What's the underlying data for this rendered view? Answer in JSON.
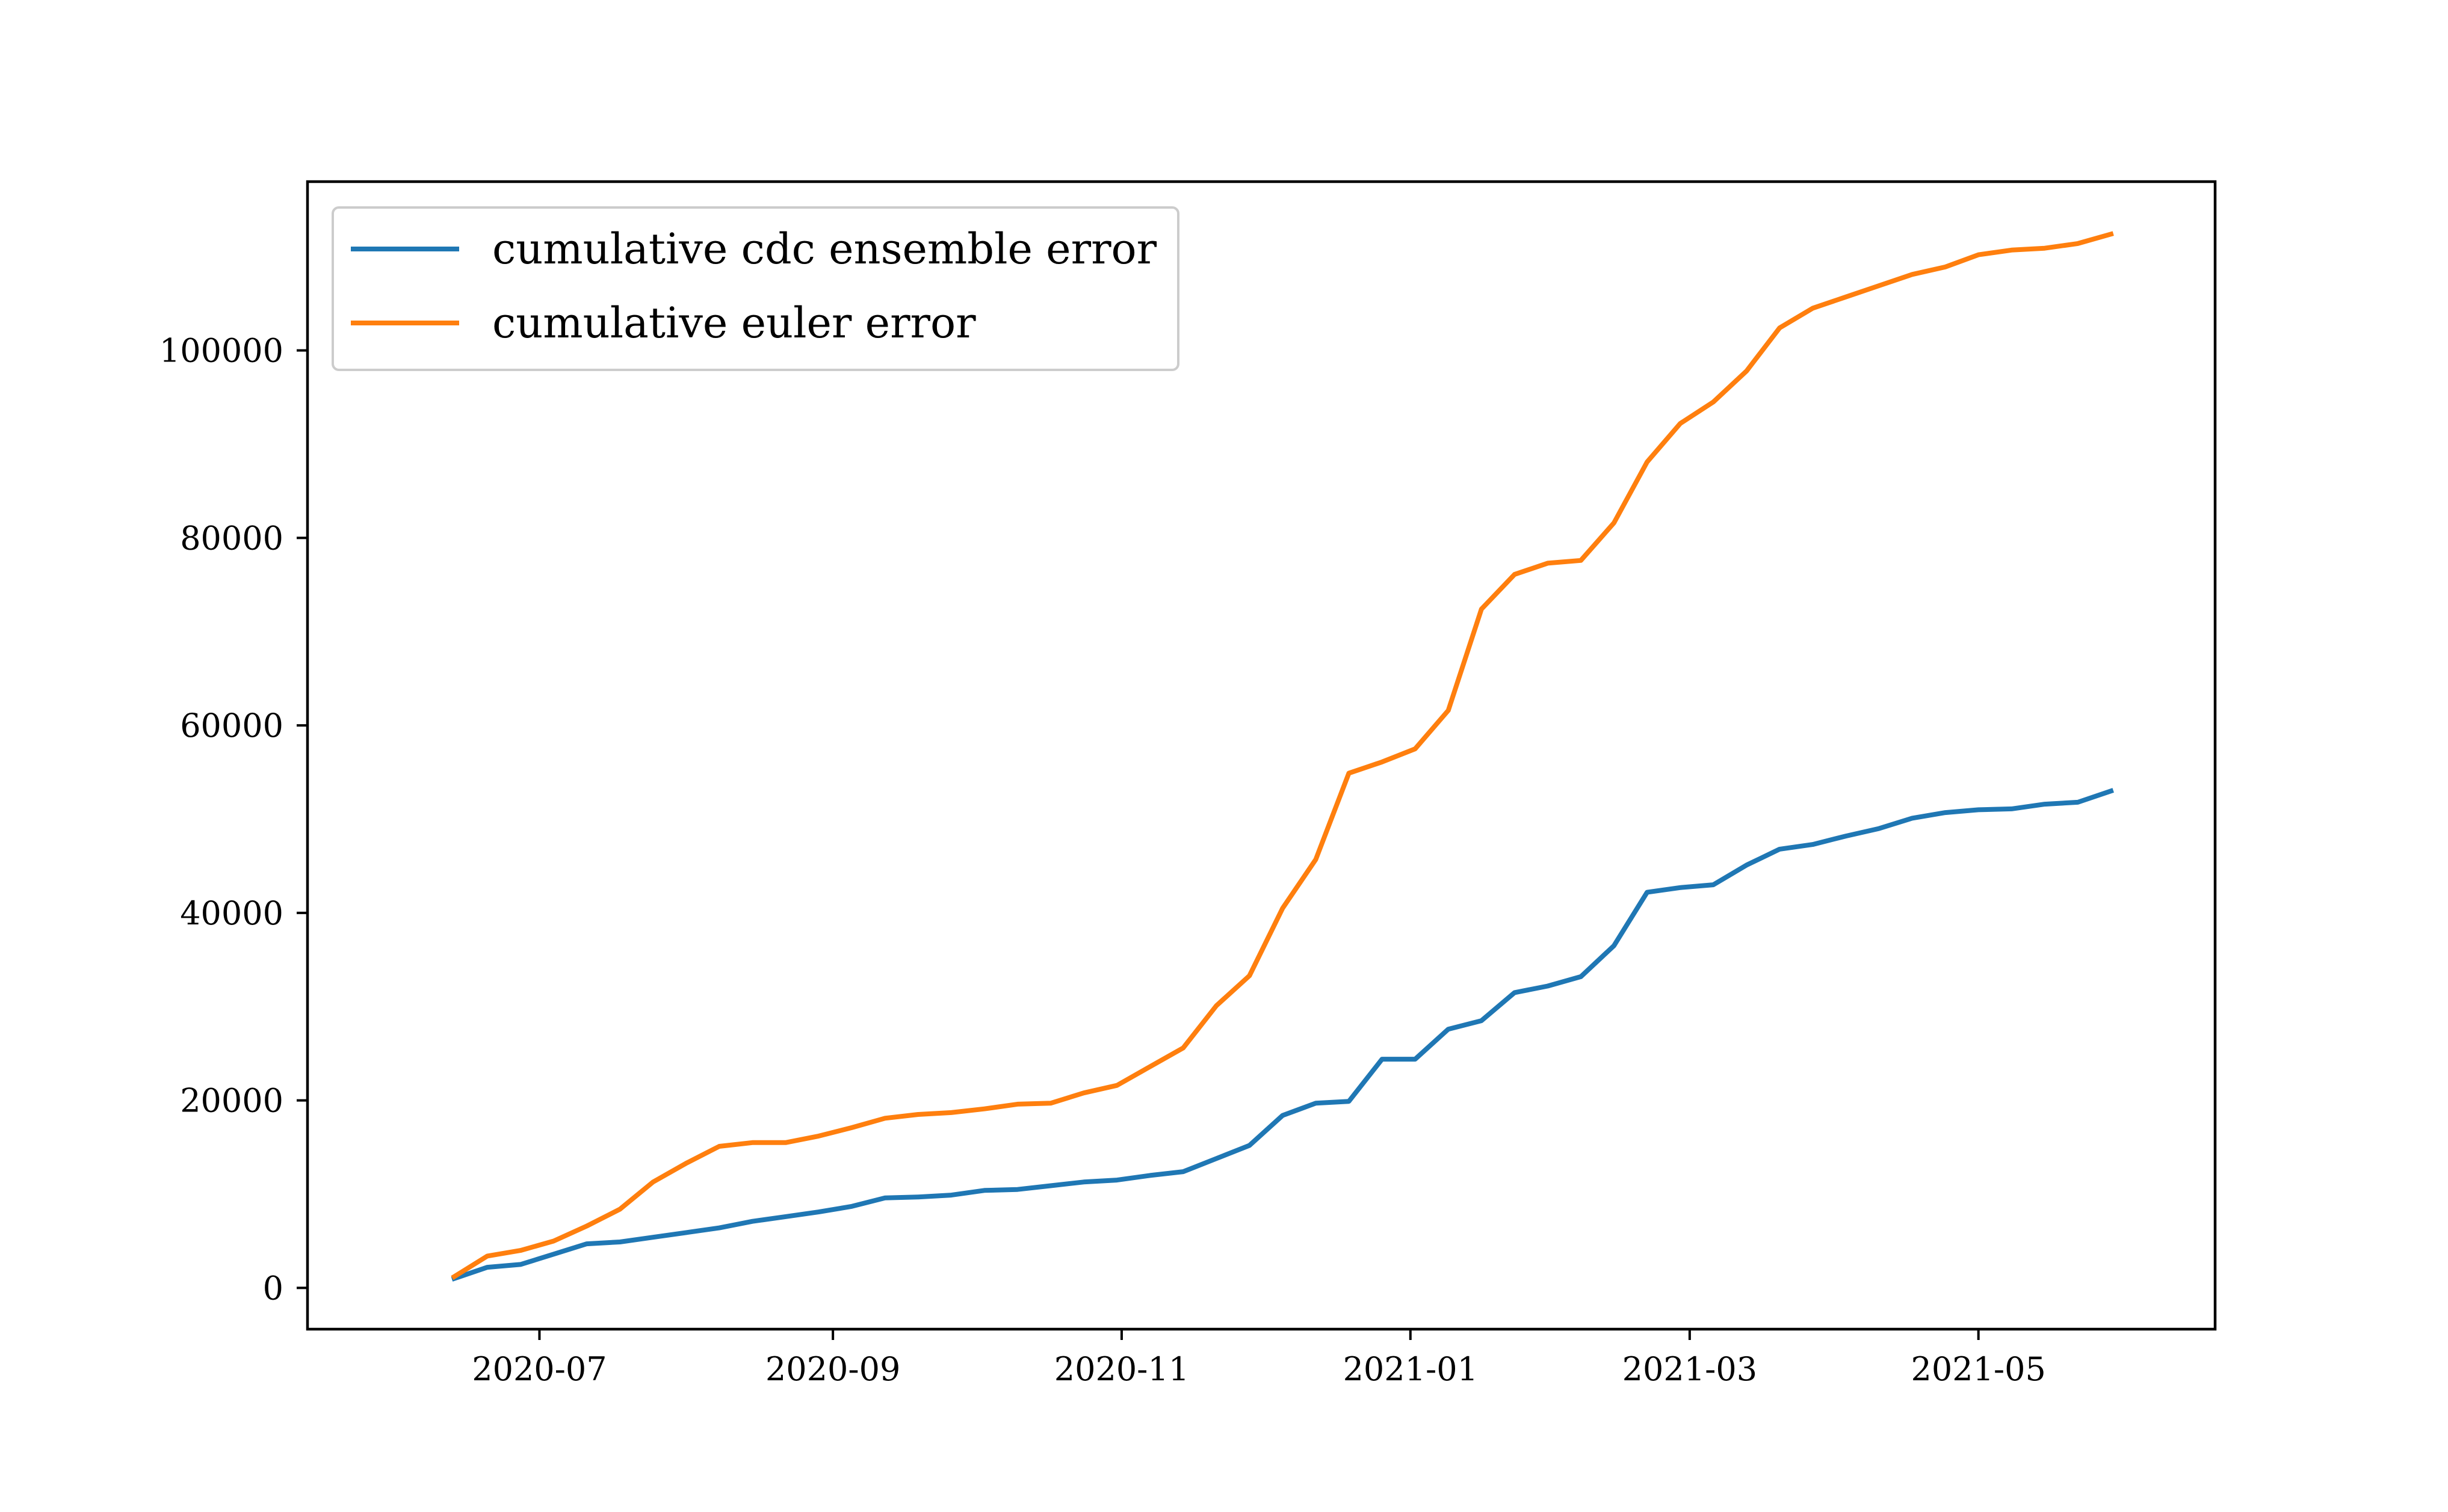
{
  "chart_data": {
    "type": "line",
    "title": "",
    "xlabel": "",
    "ylabel": "",
    "xlim": [
      "2020-05-13",
      "2021-06-20"
    ],
    "ylim": [
      -4400,
      118000
    ],
    "x_ticks": [
      "2020-07-01",
      "2020-09-01",
      "2020-11-01",
      "2021-01-01",
      "2021-03-01",
      "2021-05-01"
    ],
    "x_tick_labels": [
      "2020-07",
      "2020-09",
      "2020-11",
      "2021-01",
      "2021-03",
      "2021-05"
    ],
    "y_ticks": [
      0,
      20000,
      40000,
      60000,
      80000,
      100000
    ],
    "y_tick_labels": [
      "0",
      "20000",
      "40000",
      "60000",
      "80000",
      "100000"
    ],
    "grid": false,
    "legend": {
      "placement": "top-left"
    },
    "x": [
      "2020-06-13",
      "2020-06-20",
      "2020-06-27",
      "2020-07-04",
      "2020-07-11",
      "2020-07-18",
      "2020-07-25",
      "2020-08-01",
      "2020-08-08",
      "2020-08-15",
      "2020-08-22",
      "2020-08-29",
      "2020-09-05",
      "2020-09-12",
      "2020-09-19",
      "2020-09-26",
      "2020-10-03",
      "2020-10-10",
      "2020-10-17",
      "2020-10-24",
      "2020-10-31",
      "2020-11-07",
      "2020-11-14",
      "2020-11-21",
      "2020-11-28",
      "2020-12-05",
      "2020-12-12",
      "2020-12-19",
      "2020-12-26",
      "2021-01-02",
      "2021-01-09",
      "2021-01-16",
      "2021-01-23",
      "2021-01-30",
      "2021-02-06",
      "2021-02-13",
      "2021-02-20",
      "2021-02-27",
      "2021-03-06",
      "2021-03-13",
      "2021-03-20",
      "2021-03-27",
      "2021-04-03",
      "2021-04-10",
      "2021-04-17",
      "2021-04-24",
      "2021-05-01",
      "2021-05-08",
      "2021-05-15",
      "2021-05-22",
      "2021-05-29"
    ],
    "series": [
      {
        "name": "cumulative cdc ensemble error",
        "color": "#1f77b4",
        "values": [
          1000,
          2200,
          2500,
          3600,
          4700,
          4900,
          5400,
          5900,
          6400,
          7100,
          7600,
          8100,
          8700,
          9600,
          9700,
          9900,
          10400,
          10500,
          10900,
          11300,
          11500,
          12000,
          12400,
          13800,
          15200,
          18400,
          19700,
          19900,
          24400,
          24400,
          27600,
          28500,
          31500,
          32200,
          33200,
          36500,
          42200,
          42700,
          43000,
          45100,
          46800,
          47300,
          48200,
          49000,
          50100,
          50700,
          51000,
          51100,
          51600,
          51800,
          53000
        ]
      },
      {
        "name": "cumulative euler error",
        "color": "#ff7f0e",
        "values": [
          1200,
          3400,
          4000,
          5000,
          6600,
          8400,
          11300,
          13300,
          15100,
          15500,
          15500,
          16200,
          17100,
          18100,
          18500,
          18700,
          19100,
          19600,
          19700,
          20800,
          21600,
          23600,
          25600,
          30100,
          33300,
          40500,
          45700,
          54900,
          56100,
          57500,
          61600,
          72400,
          76100,
          77300,
          77600,
          81600,
          88100,
          92200,
          94500,
          97800,
          102400,
          104500,
          105700,
          106900,
          108100,
          108900,
          110200,
          110700,
          110900,
          111400,
          112400
        ]
      }
    ]
  }
}
